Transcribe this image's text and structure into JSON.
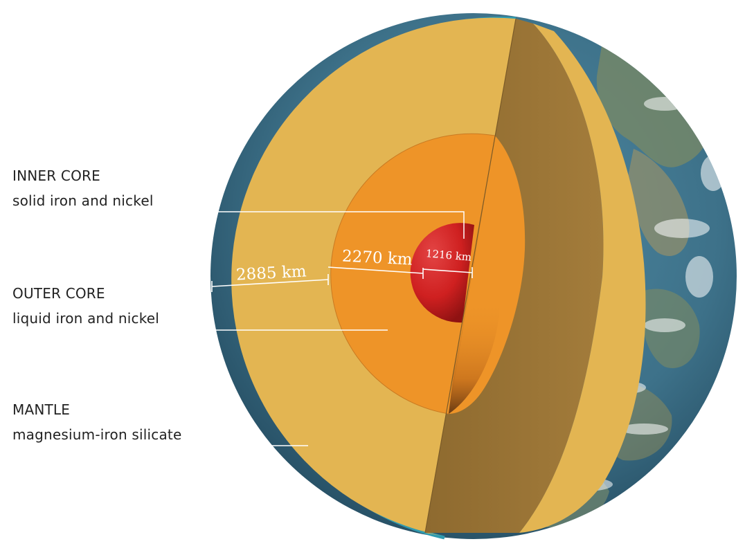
{
  "layers": [
    {
      "id": "inner-core",
      "name": "INNER CORE",
      "description": "solid iron and nickel"
    },
    {
      "id": "outer-core",
      "name": "OUTER CORE",
      "description": "liquid iron and nickel"
    },
    {
      "id": "mantle",
      "name": "MANTLE",
      "description": "magnesium-iron silicate"
    }
  ],
  "measurements": {
    "mantle_thickness": "2885 km",
    "outer_core_thickness": "2270 km",
    "inner_core_radius": "1216 km"
  },
  "colors": {
    "mantle": "#e3b552",
    "mantle_shadow": "#9a7536",
    "outer_core": "#ee9428",
    "inner_core": "#d42424",
    "crust_edge": "#2f9bb0",
    "ocean": "#3d7189",
    "land": "#8a8a5c",
    "leader_line": "#ffffff"
  }
}
